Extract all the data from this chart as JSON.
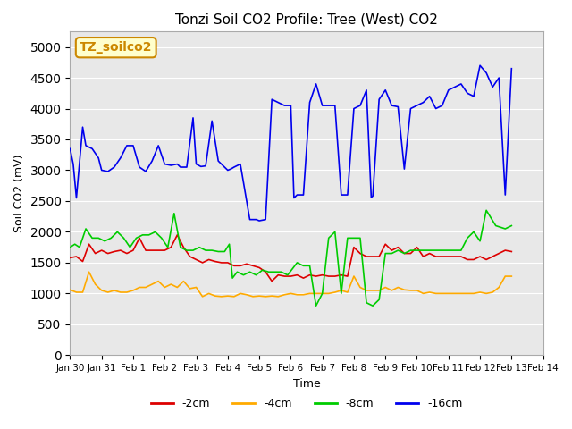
{
  "title": "Tonzi Soil CO2 Profile: Tree (West) CO2",
  "xlabel": "Time",
  "ylabel": "Soil CO2 (mV)",
  "ylim": [
    0,
    5250
  ],
  "yticks": [
    0,
    500,
    1000,
    1500,
    2000,
    2500,
    3000,
    3500,
    4000,
    4500,
    5000
  ],
  "background_color": "#e8e8e8",
  "watermark_text": "TZ_soilco2",
  "watermark_bg": "#ffffcc",
  "watermark_border": "#cc8800",
  "legend_labels": [
    "-2cm",
    "-4cm",
    "-8cm",
    "-16cm"
  ],
  "legend_colors": [
    "#dd0000",
    "#ffaa00",
    "#00cc00",
    "#0000ee"
  ],
  "x_tick_labels": [
    "Jan 30",
    "Jan 31",
    "Feb 1",
    "Feb 2",
    "Feb 3",
    "Feb 4",
    "Feb 5",
    "Feb 6",
    "Feb 7",
    "Feb 8",
    "Feb 9",
    "Feb 10",
    "Feb 11",
    "Feb 12",
    "Feb 13",
    "Feb 14"
  ],
  "x_tick_positions": [
    0,
    1,
    2,
    3,
    4,
    5,
    6,
    7,
    8,
    9,
    10,
    11,
    12,
    13,
    14,
    15
  ],
  "x_16cm": [
    0.0,
    0.1,
    0.2,
    0.4,
    0.5,
    0.7,
    0.9,
    1.0,
    1.2,
    1.4,
    1.6,
    1.8,
    2.0,
    2.2,
    2.4,
    2.6,
    2.8,
    3.0,
    3.2,
    3.4,
    3.5,
    3.7,
    3.9,
    4.0,
    4.15,
    4.3,
    4.5,
    4.7,
    4.9,
    5.0,
    5.1,
    5.2,
    5.4,
    5.5,
    5.7,
    5.9,
    6.0,
    6.2,
    6.4,
    6.6,
    6.8,
    7.0,
    7.1,
    7.2,
    7.4,
    7.6,
    7.8,
    8.0,
    8.2,
    8.4,
    8.6,
    8.8,
    9.0,
    9.2,
    9.4,
    9.55,
    9.6,
    9.8,
    10.0,
    10.2,
    10.4,
    10.6,
    10.8,
    11.0,
    11.2,
    11.4,
    11.6,
    11.8,
    12.0,
    12.2,
    12.4,
    12.6,
    12.8,
    13.0,
    13.2,
    13.4,
    13.6,
    13.8,
    14.0
  ],
  "y_16cm": [
    3350,
    3100,
    2550,
    3700,
    3400,
    3350,
    3200,
    3000,
    2980,
    3050,
    3200,
    3400,
    3400,
    3050,
    2980,
    3150,
    3400,
    3100,
    3080,
    3100,
    3050,
    3050,
    3850,
    3100,
    3060,
    3070,
    3800,
    3150,
    3050,
    3000,
    3020,
    3050,
    3100,
    2800,
    2200,
    2200,
    2180,
    2200,
    4150,
    4100,
    4050,
    4050,
    2550,
    2600,
    2600,
    4100,
    4400,
    4050,
    4050,
    4050,
    2600,
    2600,
    4000,
    4050,
    4300,
    2560,
    2580,
    4150,
    4300,
    4050,
    4030,
    3020,
    4000,
    4050,
    4100,
    4200,
    4000,
    4050,
    4300,
    4350,
    4400,
    4250,
    4200,
    4700,
    4580,
    4350,
    4500,
    2600,
    4650
  ],
  "x_2cm": [
    0.0,
    0.2,
    0.4,
    0.6,
    0.8,
    1.0,
    1.2,
    1.4,
    1.6,
    1.8,
    2.0,
    2.2,
    2.4,
    2.6,
    2.8,
    3.0,
    3.2,
    3.4,
    3.6,
    3.8,
    4.0,
    4.2,
    4.4,
    4.6,
    4.8,
    5.0,
    5.2,
    5.4,
    5.6,
    5.8,
    6.0,
    6.2,
    6.4,
    6.6,
    6.8,
    7.0,
    7.2,
    7.4,
    7.6,
    7.8,
    8.0,
    8.2,
    8.4,
    8.6,
    8.8,
    9.0,
    9.2,
    9.4,
    9.6,
    9.8,
    10.0,
    10.2,
    10.4,
    10.6,
    10.8,
    11.0,
    11.2,
    11.4,
    11.6,
    11.8,
    12.0,
    12.2,
    12.4,
    12.6,
    12.8,
    13.0,
    13.2,
    13.4,
    13.6,
    13.8,
    14.0
  ],
  "y_2cm": [
    1580,
    1600,
    1520,
    1800,
    1650,
    1700,
    1650,
    1680,
    1700,
    1650,
    1700,
    1900,
    1700,
    1700,
    1700,
    1700,
    1750,
    1950,
    1750,
    1600,
    1550,
    1500,
    1550,
    1520,
    1500,
    1500,
    1450,
    1450,
    1480,
    1450,
    1420,
    1350,
    1200,
    1300,
    1280,
    1280,
    1300,
    1250,
    1300,
    1280,
    1300,
    1280,
    1280,
    1300,
    1280,
    1750,
    1650,
    1600,
    1600,
    1600,
    1800,
    1700,
    1750,
    1650,
    1650,
    1750,
    1600,
    1650,
    1600,
    1600,
    1600,
    1600,
    1600,
    1550,
    1550,
    1600,
    1550,
    1600,
    1650,
    1700,
    1680
  ],
  "x_4cm": [
    0.0,
    0.2,
    0.4,
    0.6,
    0.8,
    1.0,
    1.2,
    1.4,
    1.6,
    1.8,
    2.0,
    2.2,
    2.4,
    2.6,
    2.8,
    3.0,
    3.2,
    3.4,
    3.6,
    3.8,
    4.0,
    4.2,
    4.4,
    4.6,
    4.8,
    5.0,
    5.2,
    5.4,
    5.6,
    5.8,
    6.0,
    6.2,
    6.4,
    6.6,
    6.8,
    7.0,
    7.2,
    7.4,
    7.6,
    7.8,
    8.0,
    8.2,
    8.4,
    8.6,
    8.8,
    9.0,
    9.2,
    9.4,
    9.6,
    9.8,
    10.0,
    10.2,
    10.4,
    10.6,
    10.8,
    11.0,
    11.2,
    11.4,
    11.6,
    11.8,
    12.0,
    12.2,
    12.4,
    12.6,
    12.8,
    13.0,
    13.2,
    13.4,
    13.6,
    13.8,
    14.0
  ],
  "y_4cm": [
    1060,
    1020,
    1020,
    1350,
    1150,
    1050,
    1020,
    1050,
    1020,
    1020,
    1050,
    1100,
    1100,
    1150,
    1200,
    1100,
    1150,
    1100,
    1200,
    1080,
    1100,
    950,
    1000,
    960,
    950,
    960,
    950,
    1000,
    980,
    950,
    960,
    950,
    960,
    950,
    980,
    1000,
    980,
    980,
    1000,
    1000,
    1000,
    1000,
    1020,
    1050,
    1020,
    1280,
    1100,
    1050,
    1050,
    1050,
    1100,
    1050,
    1100,
    1060,
    1050,
    1050,
    1000,
    1020,
    1000,
    1000,
    1000,
    1000,
    1000,
    1000,
    1000,
    1020,
    1000,
    1020,
    1100,
    1280,
    1280
  ],
  "x_8cm": [
    0.0,
    0.15,
    0.3,
    0.5,
    0.7,
    0.9,
    1.1,
    1.3,
    1.5,
    1.7,
    1.9,
    2.1,
    2.3,
    2.5,
    2.7,
    2.9,
    3.1,
    3.3,
    3.5,
    3.7,
    3.9,
    4.1,
    4.3,
    4.5,
    4.7,
    4.9,
    5.05,
    5.15,
    5.3,
    5.5,
    5.7,
    5.9,
    6.1,
    6.3,
    6.5,
    6.7,
    6.9,
    7.05,
    7.2,
    7.4,
    7.6,
    7.8,
    8.0,
    8.2,
    8.4,
    8.6,
    8.8,
    9.0,
    9.2,
    9.4,
    9.6,
    9.8,
    10.0,
    10.2,
    10.4,
    10.6,
    10.8,
    11.0,
    11.2,
    11.4,
    11.6,
    11.8,
    12.0,
    12.2,
    12.4,
    12.6,
    12.8,
    13.0,
    13.2,
    13.5,
    13.8,
    14.0
  ],
  "y_8cm": [
    1750,
    1800,
    1750,
    2050,
    1900,
    1900,
    1850,
    1900,
    2000,
    1900,
    1750,
    1900,
    1950,
    1950,
    2000,
    1900,
    1750,
    2300,
    1750,
    1700,
    1700,
    1750,
    1700,
    1700,
    1680,
    1680,
    1800,
    1250,
    1350,
    1300,
    1350,
    1300,
    1380,
    1350,
    1350,
    1350,
    1300,
    1400,
    1500,
    1450,
    1450,
    800,
    1000,
    1900,
    2000,
    1000,
    1900,
    1900,
    1900,
    850,
    800,
    900,
    1650,
    1650,
    1700,
    1650,
    1700,
    1700,
    1700,
    1700,
    1700,
    1700,
    1700,
    1700,
    1700,
    1900,
    2000,
    1850,
    2350,
    2100,
    2050,
    2100
  ]
}
